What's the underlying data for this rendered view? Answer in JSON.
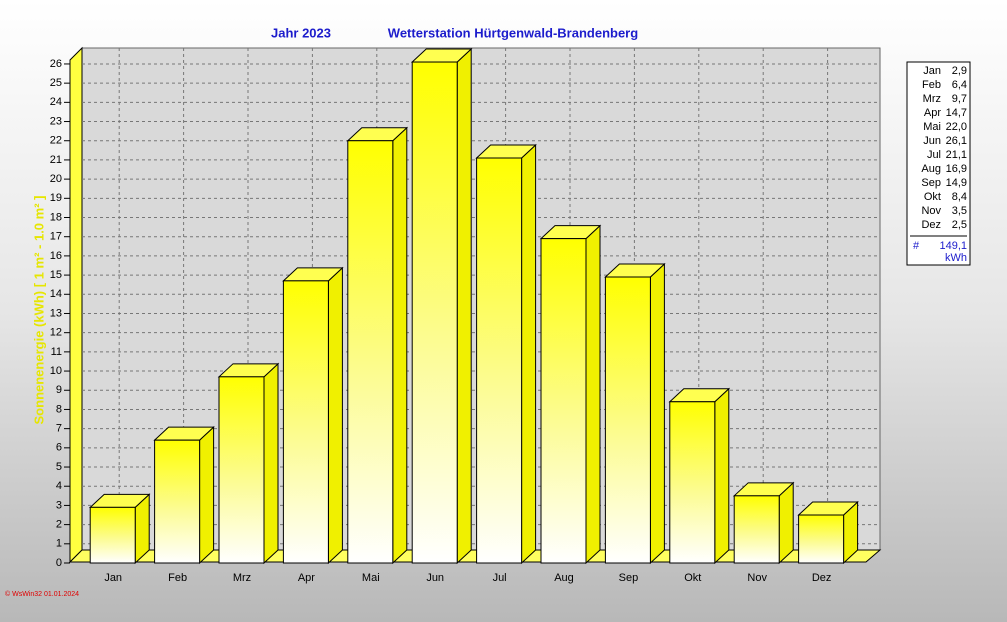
{
  "chart_data": {
    "type": "bar3d",
    "title": "Jahr  2023",
    "subtitle": "Wetterstation Hürtgenwald-Brandenberg",
    "y_label": "Sonnenenergie (kWh)  [ 1 m² - 1.0 m² ]",
    "categories": [
      "Jan",
      "Feb",
      "Mrz",
      "Apr",
      "Mai",
      "Jun",
      "Jul",
      "Aug",
      "Sep",
      "Okt",
      "Nov",
      "Dez"
    ],
    "values": [
      2.9,
      6.4,
      9.7,
      14.7,
      22.0,
      26.1,
      21.1,
      16.9,
      14.9,
      8.4,
      3.5,
      2.5
    ],
    "value_labels": [
      "2,9",
      "6,4",
      "9,7",
      "14,7",
      "22,0",
      "26,1",
      "21,1",
      "16,9",
      "14,9",
      "8,4",
      "3,5",
      "2,5"
    ],
    "color": "#ffff00",
    "ylim": [
      0,
      26.8
    ],
    "yticks": [
      0,
      1,
      2,
      3,
      4,
      5,
      6,
      7,
      8,
      9,
      10,
      11,
      12,
      13,
      14,
      15,
      16,
      17,
      18,
      19,
      20,
      21,
      22,
      23,
      24,
      25,
      26
    ],
    "grid": true,
    "total_symbol": "#",
    "total": {
      "value": 149.1,
      "label": "149,1"
    },
    "unit": "kWh",
    "footer": "© WsWin32  01.01.2024"
  }
}
